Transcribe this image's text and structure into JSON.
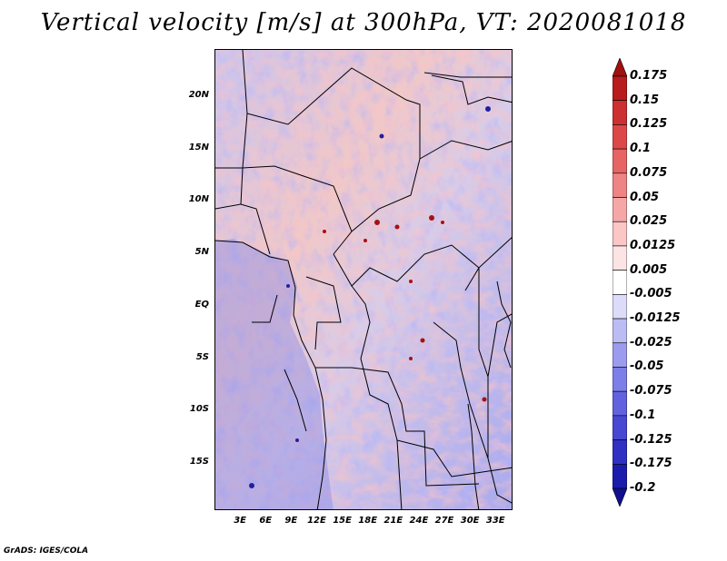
{
  "title": "Vertical velocity [m/s] at 300hPa, VT: 2020081018",
  "credit": "GrADS: IGES/COLA",
  "lat_labels": [
    "20N",
    "15N",
    "10N",
    "5N",
    "EQ",
    "5S",
    "10S",
    "15S"
  ],
  "lat_values": [
    20,
    15,
    10,
    5,
    0,
    -5,
    -10,
    -15
  ],
  "lon_labels": [
    "3E",
    "6E",
    "9E",
    "12E",
    "15E",
    "18E",
    "21E",
    "24E",
    "27E",
    "30E",
    "33E"
  ],
  "lon_values": [
    3,
    6,
    9,
    12,
    15,
    18,
    21,
    24,
    27,
    30,
    33
  ],
  "map_extent": {
    "lon_min": 0,
    "lon_max": 35,
    "lat_min": -19.5,
    "lat_max": 24.5
  },
  "colorbar": {
    "labels": [
      "0.175",
      "0.15",
      "0.125",
      "0.1",
      "0.075",
      "0.05",
      "0.025",
      "0.0125",
      "0.005",
      "-0.005",
      "-0.0125",
      "-0.025",
      "-0.05",
      "-0.075",
      "-0.1",
      "-0.125",
      "-0.175",
      "-0.2"
    ],
    "colors": [
      "#a01010",
      "#b81c1c",
      "#cc3030",
      "#dc4848",
      "#e66464",
      "#ee8484",
      "#f5a6a6",
      "#fac6c6",
      "#fde4e4",
      "#ffffff",
      "#dcdcfa",
      "#bcbcf5",
      "#9c9cef",
      "#7e7ee8",
      "#6262de",
      "#4848d2",
      "#3030c2",
      "#1c1cac",
      "#10108e"
    ]
  }
}
